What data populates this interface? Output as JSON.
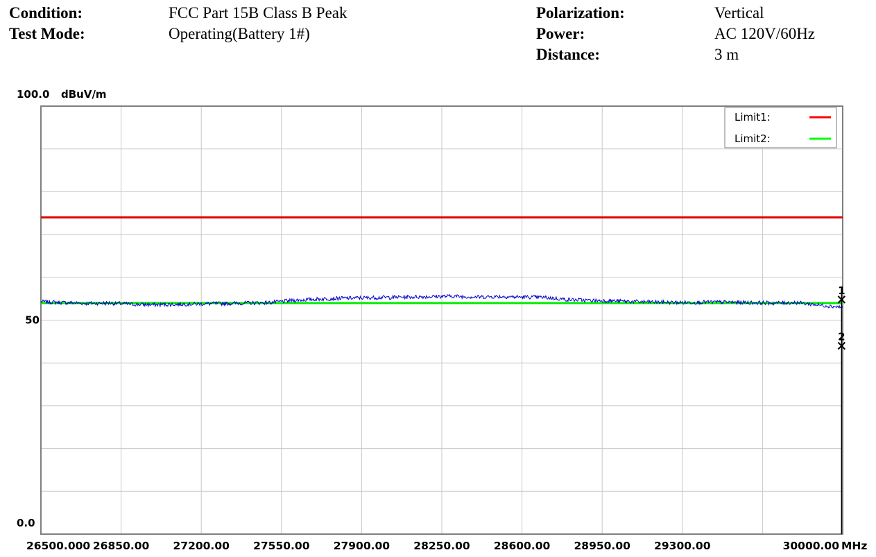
{
  "header": {
    "condition_label": "Condition:",
    "condition_value": "FCC Part 15B Class B Peak",
    "test_mode_label": "Test Mode:",
    "test_mode_value": "Operating(Battery 1#)",
    "polarization_label": "Polarization:",
    "polarization_value": "Vertical",
    "power_label": "Power:",
    "power_value": "AC 120V/60Hz",
    "distance_label": "Distance:",
    "distance_value": "3 m"
  },
  "chart_data": {
    "type": "line",
    "title": "",
    "ylabel": "dBuV/m",
    "xunit": "MHz",
    "xlim": [
      26500,
      30000
    ],
    "ylim": [
      0,
      100
    ],
    "y_tick_labels": [
      "100.0",
      "50",
      "0.0"
    ],
    "y_tick_values": [
      100,
      50,
      0
    ],
    "x_tick_labels": [
      "26500.000",
      "26850.00",
      "27200.00",
      "27550.00",
      "27900.00",
      "28250.00",
      "28600.00",
      "28950.00",
      "29300.00",
      "30000.00"
    ],
    "x_tick_values": [
      26500,
      26850,
      27200,
      27550,
      27900,
      28250,
      28600,
      28950,
      29300,
      30000
    ],
    "grid": true,
    "x_gridlines": [
      26850,
      27200,
      27550,
      27900,
      28250,
      28600,
      28950,
      29300,
      29650
    ],
    "y_gridlines": [
      10,
      20,
      30,
      40,
      50,
      60,
      70,
      80,
      90
    ],
    "legend_position": "top-right",
    "legend": [
      {
        "name": "Limit1:",
        "color": "#ff0000"
      },
      {
        "name": "Limit2:",
        "color": "#00ff00"
      }
    ],
    "limits": [
      {
        "name": "Limit1:",
        "value": 74.0,
        "color": "#e00000"
      },
      {
        "name": "Limit2:",
        "value": 54.0,
        "color": "#00ee00"
      }
    ],
    "series": [
      {
        "color": "#0000cc",
        "x": [
          26500,
          26600,
          26700,
          26800,
          26900,
          27000,
          27100,
          27200,
          27300,
          27400,
          27500,
          27600,
          27700,
          27800,
          27900,
          28000,
          28100,
          28200,
          28300,
          28400,
          28500,
          28600,
          28700,
          28800,
          28900,
          29000,
          29100,
          29200,
          29300,
          29400,
          29500,
          29600,
          29700,
          29800,
          29900,
          30000
        ],
        "y": [
          54.3,
          54.1,
          53.9,
          54.0,
          53.7,
          53.6,
          53.7,
          53.8,
          53.9,
          54.0,
          54.1,
          54.6,
          54.9,
          55.1,
          55.2,
          55.3,
          55.4,
          55.5,
          55.6,
          55.4,
          55.5,
          55.4,
          55.3,
          54.8,
          54.6,
          54.5,
          54.3,
          54.2,
          54.1,
          54.2,
          54.2,
          54.1,
          54.0,
          54.1,
          53.5,
          53.0
        ]
      }
    ],
    "markers": [
      {
        "label": "1",
        "x": 29995,
        "y": 54.8
      },
      {
        "label": "2",
        "x": 29995,
        "y": 44.0
      }
    ],
    "marker_line_x": 29995
  }
}
